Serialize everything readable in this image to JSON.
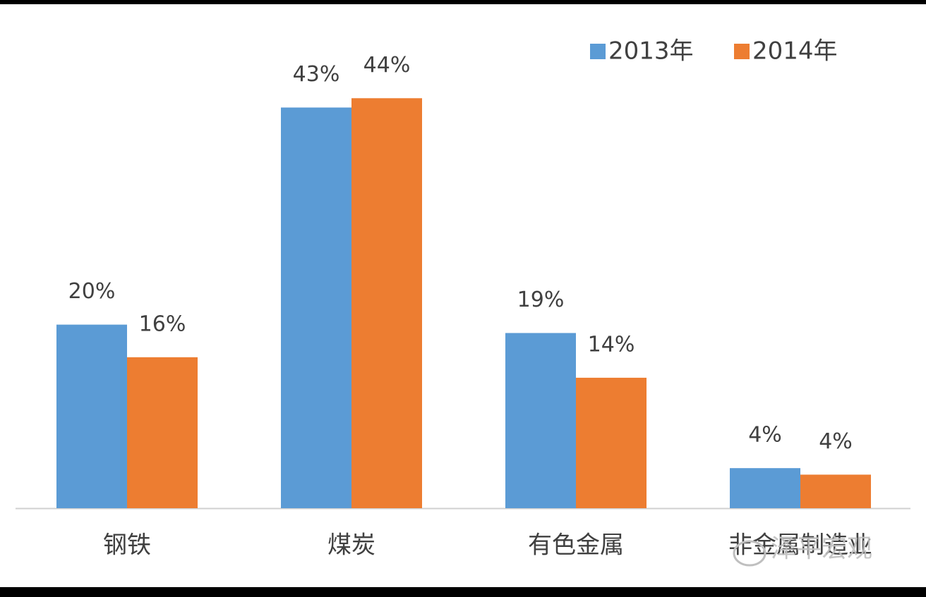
{
  "chart_data": {
    "type": "bar",
    "categories": [
      "钢铁",
      "煤炭",
      "有色金属",
      "非金属制造业"
    ],
    "series": [
      {
        "name": "2013年",
        "color": "#5b9bd5",
        "values": [
          19.7,
          43,
          18.8,
          4.3
        ],
        "value_labels": [
          "20%",
          "43%",
          "19%",
          "4%"
        ]
      },
      {
        "name": "2014年",
        "color": "#ed7d31",
        "values": [
          16.2,
          44,
          14,
          3.6
        ],
        "value_labels": [
          "16%",
          "44%",
          "14%",
          "4%"
        ]
      }
    ],
    "watermark": "泽平宏观"
  }
}
